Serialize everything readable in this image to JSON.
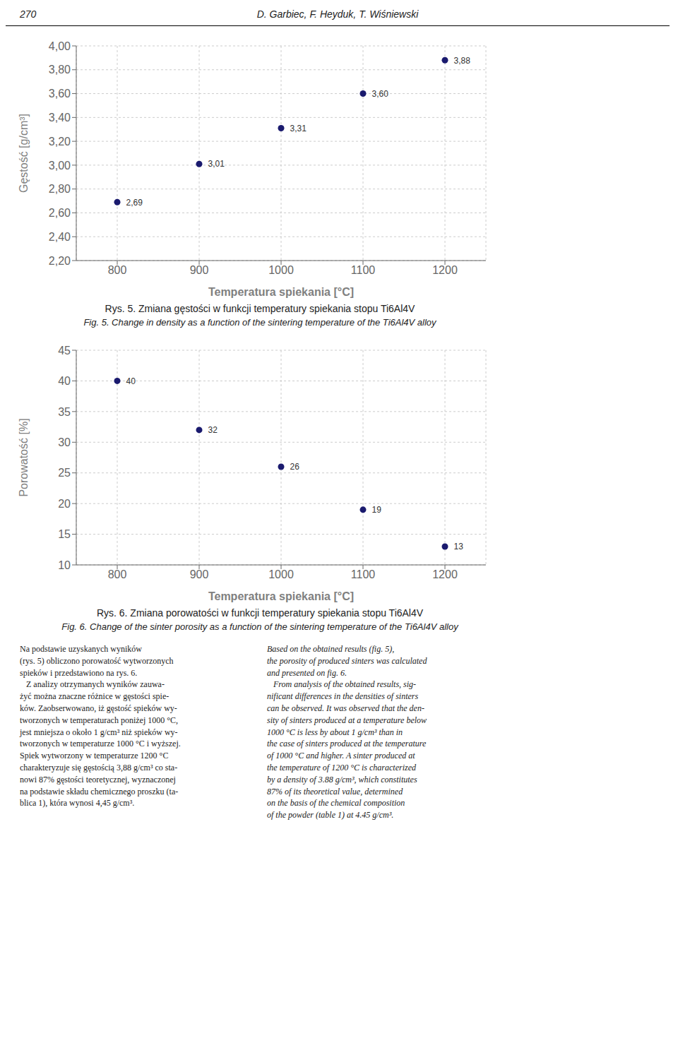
{
  "chart_data": [
    {
      "type": "scatter",
      "title": "Rys. 5. Zmiana gęstości w funkcji temperatury spiekania stopu Ti6Al4V",
      "subtitle": "Fig. 5. Change in density as a function of the sintering temperature of the Ti6Al4V alloy",
      "xlabel": "Temperatura spiekania [°C]",
      "ylabel": "Gęstość [g/cm³]",
      "x": [
        800,
        900,
        1000,
        1100,
        1200
      ],
      "values": [
        2.69,
        3.01,
        3.31,
        3.6,
        3.88
      ],
      "value_labels": [
        "2,69",
        "3,01",
        "3,31",
        "3,60",
        "3,88"
      ],
      "xlim": [
        750,
        1250
      ],
      "ylim": [
        2.2,
        4.0
      ],
      "xticks": [
        800,
        900,
        1000,
        1100,
        1200
      ],
      "yticks": [
        {
          "value": 2.2,
          "label": "2,20"
        },
        {
          "value": 2.4,
          "label": "2,40"
        },
        {
          "value": 2.6,
          "label": "2,60"
        },
        {
          "value": 2.8,
          "label": "2,80"
        },
        {
          "value": 3.0,
          "label": "3,00"
        },
        {
          "value": 3.2,
          "label": "3,20"
        },
        {
          "value": 3.4,
          "label": "3,40"
        },
        {
          "value": 3.6,
          "label": "3,60"
        },
        {
          "value": 3.8,
          "label": "3,80"
        },
        {
          "value": 4.0,
          "label": "4,00"
        }
      ],
      "grid": true,
      "data_labels": true,
      "color": "#1a1a6e",
      "marker": "circle"
    },
    {
      "type": "scatter",
      "title": "Rys. 6. Zmiana porowatości w funkcji temperatury spiekania stopu Ti6Al4V",
      "subtitle": "Fig. 6. Change of the sinter porosity as a function of the sintering temperature of the Ti6Al4V alloy",
      "xlabel": "Temperatura spiekania [°C]",
      "ylabel": "Porowatość [%]",
      "x": [
        800,
        900,
        1000,
        1100,
        1200
      ],
      "values": [
        40,
        32,
        26,
        19,
        13
      ],
      "xlim": [
        750,
        1250
      ],
      "ylim": [
        10,
        45
      ],
      "xticks": [
        800,
        900,
        1000,
        1100,
        1200
      ],
      "yticks": [
        10,
        15,
        20,
        25,
        30,
        35,
        40,
        45
      ],
      "grid": true,
      "data_labels": true,
      "color": "#1a1a6e",
      "marker": "circle"
    }
  ],
  "annotations": [
    "270",
    "D. Garbiec, F. Heyduk, T. Wiśniewski",
    "Na podstawie uzyskanych wyników\n(rys. 5) obliczono porowatość wytworzonych\nspieków i przedstawiono na rys. 6.\n   Z analizy otrzymanych wyników zauwa-\nżyć można znaczne różnice w gęstości spie-\nków. Zaobserwowano, iż gęstość spieków wy-\ntworzonych w temperaturach poniżej 1000 °C,\njest mniejsza o około 1 g/cm³ niż spieków wy-\ntworzonych w temperaturze 1000 °C i wyższej.\nSpiek wytworzony w temperaturze 1200 °C\ncharakteryzuje się gęstością 3,88 g/cm³ co sta-\nnowi 87% gęstości teoretycznej, wyznaczonej\nna podstawie składu chemicznego proszku (ta-\nblica 1), która wynosi 4,45 g/cm³.",
    "Based on the obtained results (fig. 5),\nthe porosity of produced sinters was calculated\nand presented on fig. 6.\n   From analysis of the obtained results, sig-\nnificant differences in the densities of sinters\ncan be observed. It was observed that the den-\nsity of sinters produced at a temperature below\n1000 °C is less by about 1 g/cm³ than in\nthe case of sinters produced at the temperature\nof 1000 °C and higher. A sinter produced at\nthe temperature of 1200 °C is characterized\nby a density of 3.88 g/cm³, which constitutes\n87% of its theoretical value, determined\non the basis of the chemical composition\nof the powder (table 1) at 4.45 g/cm³."
  ]
}
